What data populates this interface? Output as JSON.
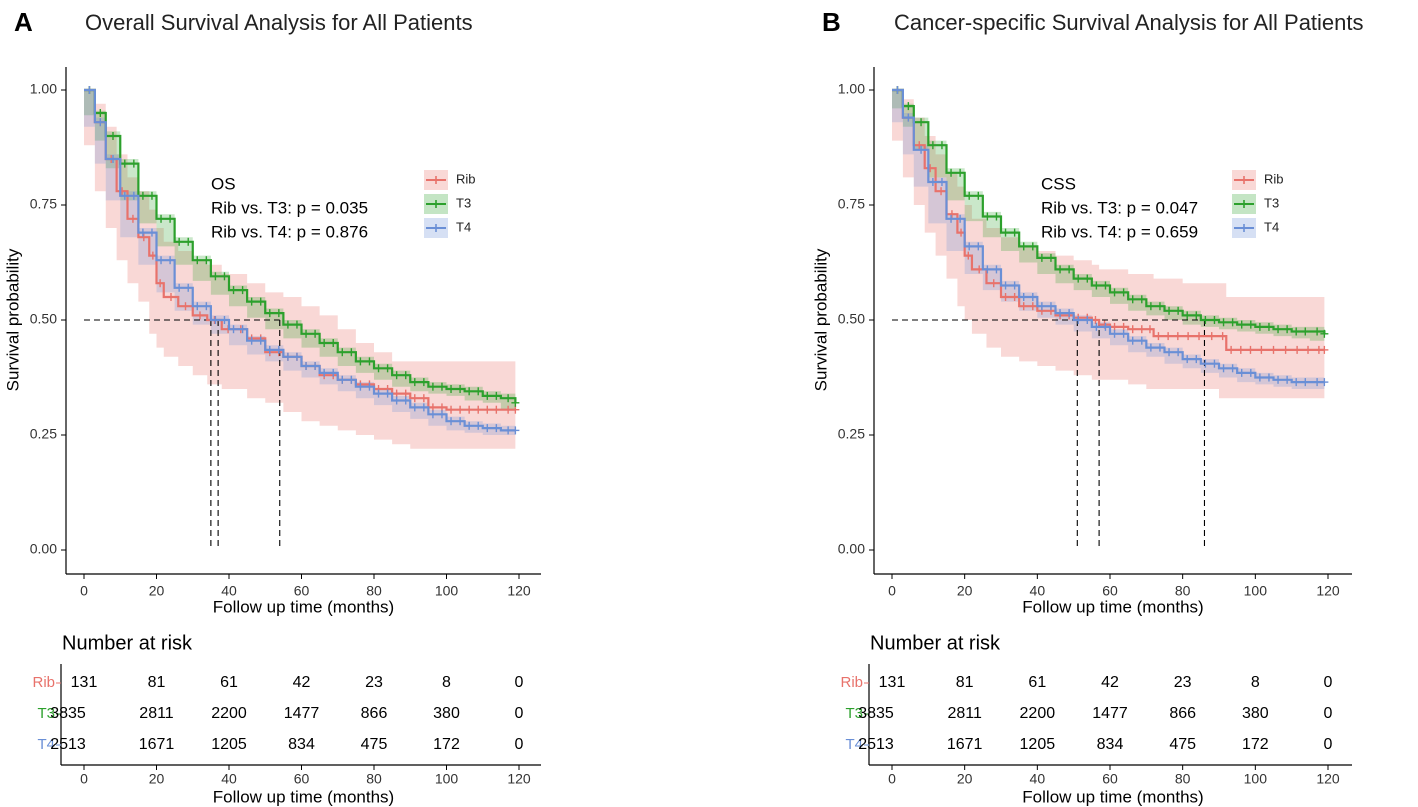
{
  "panels": [
    {
      "letter": "A",
      "title": "Overall Survival Analysis for All Patients",
      "annotation": {
        "line1": "OS",
        "line2": "Rib vs. T3: p = 0.035",
        "line3": "Rib vs. T4: p = 0.876"
      },
      "risk_title": "Number at risk"
    },
    {
      "letter": "B",
      "title": "Cancer-specific Survival Analysis for All Patients",
      "annotation": {
        "line1": "CSS",
        "line2": "Rib vs. T3: p = 0.047",
        "line3": "Rib vs. T4: p = 0.659"
      },
      "risk_title": "Number at risk"
    }
  ],
  "chart_data": [
    {
      "type": "line",
      "subtype": "kaplan-meier",
      "title": "Overall Survival Analysis for All Patients",
      "xlabel": "Follow up time (months)",
      "ylabel": "Survival probability",
      "xlim": [
        0,
        120
      ],
      "ylim": [
        0,
        1
      ],
      "xticks": [
        0,
        20,
        40,
        60,
        80,
        100,
        120
      ],
      "yticks": [
        0.0,
        0.25,
        0.5,
        0.75,
        1.0
      ],
      "ytick_labels": [
        "0.00",
        "0.25",
        "0.50",
        "0.75",
        "1.00"
      ],
      "legend_position": "top-right",
      "median_survival": {
        "Rib": 35,
        "T4": 37,
        "T3": 54
      },
      "series": [
        {
          "name": "Rib",
          "color": "#E8726B",
          "x": [
            0,
            3,
            6,
            9,
            12,
            15,
            18,
            20,
            22,
            26,
            30,
            34,
            38,
            45,
            50,
            55,
            60,
            65,
            70,
            75,
            80,
            85,
            90,
            95,
            100,
            105,
            110,
            115,
            119
          ],
          "y": [
            1.0,
            0.93,
            0.85,
            0.78,
            0.72,
            0.68,
            0.64,
            0.58,
            0.55,
            0.53,
            0.51,
            0.5,
            0.48,
            0.46,
            0.43,
            0.42,
            0.4,
            0.38,
            0.37,
            0.36,
            0.35,
            0.34,
            0.33,
            0.31,
            0.305,
            0.305,
            0.305,
            0.305,
            0.305
          ],
          "ci_upper": [
            1.0,
            0.97,
            0.92,
            0.86,
            0.81,
            0.78,
            0.74,
            0.7,
            0.67,
            0.65,
            0.63,
            0.62,
            0.6,
            0.58,
            0.56,
            0.55,
            0.53,
            0.51,
            0.48,
            0.45,
            0.43,
            0.41,
            0.41,
            0.41,
            0.41,
            0.41,
            0.41,
            0.41,
            0.41
          ],
          "ci_lower": [
            1.0,
            0.88,
            0.78,
            0.7,
            0.63,
            0.58,
            0.54,
            0.47,
            0.44,
            0.42,
            0.4,
            0.38,
            0.36,
            0.35,
            0.33,
            0.32,
            0.3,
            0.28,
            0.27,
            0.26,
            0.25,
            0.24,
            0.23,
            0.22,
            0.22,
            0.22,
            0.22,
            0.22,
            0.22
          ]
        },
        {
          "name": "T3",
          "color": "#2CA02C",
          "x": [
            0,
            3,
            6,
            10,
            15,
            20,
            25,
            30,
            35,
            40,
            45,
            50,
            55,
            60,
            65,
            70,
            75,
            80,
            85,
            90,
            95,
            100,
            105,
            110,
            115,
            119
          ],
          "y": [
            1.0,
            0.95,
            0.9,
            0.84,
            0.77,
            0.72,
            0.67,
            0.63,
            0.595,
            0.565,
            0.54,
            0.515,
            0.49,
            0.47,
            0.45,
            0.43,
            0.41,
            0.395,
            0.38,
            0.365,
            0.355,
            0.35,
            0.345,
            0.335,
            0.33,
            0.32
          ],
          "ci_upper": [
            1.0,
            0.955,
            0.91,
            0.85,
            0.78,
            0.73,
            0.68,
            0.64,
            0.605,
            0.575,
            0.55,
            0.525,
            0.5,
            0.48,
            0.46,
            0.44,
            0.42,
            0.405,
            0.39,
            0.375,
            0.365,
            0.36,
            0.355,
            0.345,
            0.34,
            0.335
          ],
          "ci_lower": [
            1.0,
            0.945,
            0.89,
            0.83,
            0.76,
            0.71,
            0.66,
            0.62,
            0.585,
            0.555,
            0.53,
            0.505,
            0.48,
            0.46,
            0.44,
            0.42,
            0.4,
            0.385,
            0.37,
            0.355,
            0.345,
            0.34,
            0.335,
            0.325,
            0.32,
            0.305
          ]
        },
        {
          "name": "T4",
          "color": "#6A8FD6",
          "x": [
            0,
            3,
            6,
            10,
            15,
            20,
            25,
            30,
            35,
            40,
            45,
            50,
            55,
            60,
            65,
            70,
            75,
            80,
            85,
            90,
            95,
            100,
            105,
            110,
            115,
            119
          ],
          "y": [
            1.0,
            0.93,
            0.85,
            0.77,
            0.69,
            0.63,
            0.57,
            0.53,
            0.5,
            0.48,
            0.455,
            0.435,
            0.42,
            0.4,
            0.385,
            0.37,
            0.355,
            0.34,
            0.325,
            0.31,
            0.295,
            0.28,
            0.27,
            0.265,
            0.26,
            0.26
          ],
          "ci_upper": [
            1.0,
            0.94,
            0.86,
            0.78,
            0.7,
            0.64,
            0.58,
            0.54,
            0.51,
            0.49,
            0.465,
            0.445,
            0.43,
            0.41,
            0.395,
            0.38,
            0.365,
            0.35,
            0.335,
            0.32,
            0.305,
            0.29,
            0.28,
            0.275,
            0.27,
            0.27
          ],
          "ci_lower": [
            1.0,
            0.92,
            0.84,
            0.76,
            0.68,
            0.62,
            0.56,
            0.52,
            0.49,
            0.47,
            0.445,
            0.425,
            0.41,
            0.39,
            0.375,
            0.36,
            0.345,
            0.33,
            0.315,
            0.3,
            0.285,
            0.27,
            0.26,
            0.255,
            0.25,
            0.25
          ]
        }
      ],
      "risk_table": {
        "title": "Number at risk",
        "times": [
          0,
          20,
          40,
          60,
          80,
          100,
          120
        ],
        "rows": [
          {
            "name": "Rib",
            "color": "#E8726B",
            "values": [
              "131",
              "81",
              "61",
              "42",
              "23",
              "8",
              "0"
            ]
          },
          {
            "name": "T3",
            "color": "#2CA02C",
            "values": [
              "3835",
              "2811",
              "2200",
              "1477",
              "866",
              "380",
              "0"
            ]
          },
          {
            "name": "T4",
            "color": "#6A8FD6",
            "values": [
              "2513",
              "1671",
              "1205",
              "834",
              "475",
              "172",
              "0"
            ]
          }
        ],
        "xlabel": "Follow up time (months)"
      }
    },
    {
      "type": "line",
      "subtype": "kaplan-meier",
      "title": "Cancer-specific Survival Analysis for All Patients",
      "xlabel": "Follow up time (months)",
      "ylabel": "Survival probability",
      "xlim": [
        0,
        120
      ],
      "ylim": [
        0,
        1
      ],
      "xticks": [
        0,
        20,
        40,
        60,
        80,
        100,
        120
      ],
      "yticks": [
        0.0,
        0.25,
        0.5,
        0.75,
        1.0
      ],
      "ytick_labels": [
        "0.00",
        "0.25",
        "0.50",
        "0.75",
        "1.00"
      ],
      "legend_position": "top-right",
      "median_survival": {
        "T4": 51,
        "Rib": 57,
        "T3": 86
      },
      "series": [
        {
          "name": "Rib",
          "color": "#E8726B",
          "x": [
            0,
            3,
            6,
            9,
            12,
            15,
            18,
            20,
            22,
            26,
            30,
            35,
            40,
            45,
            50,
            55,
            57,
            60,
            65,
            70,
            72,
            80,
            86,
            90,
            92,
            100,
            110,
            119
          ],
          "y": [
            1.0,
            0.94,
            0.88,
            0.83,
            0.78,
            0.73,
            0.69,
            0.64,
            0.61,
            0.58,
            0.55,
            0.53,
            0.52,
            0.51,
            0.505,
            0.5,
            0.49,
            0.485,
            0.48,
            0.48,
            0.465,
            0.465,
            0.465,
            0.465,
            0.435,
            0.435,
            0.435,
            0.435
          ],
          "ci_upper": [
            1.0,
            0.98,
            0.94,
            0.9,
            0.86,
            0.82,
            0.79,
            0.75,
            0.72,
            0.7,
            0.68,
            0.66,
            0.65,
            0.64,
            0.63,
            0.62,
            0.61,
            0.61,
            0.6,
            0.6,
            0.59,
            0.58,
            0.58,
            0.58,
            0.55,
            0.55,
            0.55,
            0.55
          ],
          "ci_lower": [
            1.0,
            0.89,
            0.81,
            0.75,
            0.69,
            0.64,
            0.59,
            0.53,
            0.5,
            0.47,
            0.44,
            0.42,
            0.41,
            0.4,
            0.39,
            0.38,
            0.37,
            0.37,
            0.37,
            0.36,
            0.35,
            0.35,
            0.35,
            0.35,
            0.33,
            0.33,
            0.33,
            0.33
          ]
        },
        {
          "name": "T3",
          "color": "#2CA02C",
          "x": [
            0,
            3,
            6,
            10,
            15,
            20,
            25,
            30,
            35,
            40,
            45,
            50,
            55,
            60,
            65,
            70,
            75,
            80,
            85,
            90,
            95,
            100,
            105,
            110,
            115,
            119
          ],
          "y": [
            1.0,
            0.965,
            0.93,
            0.88,
            0.82,
            0.77,
            0.725,
            0.69,
            0.66,
            0.635,
            0.61,
            0.59,
            0.575,
            0.56,
            0.545,
            0.53,
            0.52,
            0.51,
            0.5,
            0.495,
            0.49,
            0.485,
            0.48,
            0.475,
            0.475,
            0.47
          ],
          "ci_upper": [
            1.0,
            0.97,
            0.94,
            0.89,
            0.83,
            0.78,
            0.735,
            0.7,
            0.67,
            0.645,
            0.62,
            0.6,
            0.585,
            0.57,
            0.555,
            0.54,
            0.53,
            0.52,
            0.51,
            0.505,
            0.5,
            0.495,
            0.49,
            0.485,
            0.485,
            0.48
          ],
          "ci_lower": [
            1.0,
            0.96,
            0.92,
            0.87,
            0.81,
            0.76,
            0.715,
            0.68,
            0.65,
            0.625,
            0.6,
            0.58,
            0.565,
            0.55,
            0.535,
            0.52,
            0.51,
            0.5,
            0.49,
            0.485,
            0.48,
            0.475,
            0.47,
            0.465,
            0.46,
            0.455
          ]
        },
        {
          "name": "T4",
          "color": "#6A8FD6",
          "x": [
            0,
            3,
            6,
            10,
            15,
            20,
            25,
            30,
            35,
            40,
            45,
            50,
            55,
            60,
            65,
            70,
            75,
            80,
            85,
            90,
            95,
            100,
            105,
            110,
            115,
            119
          ],
          "y": [
            1.0,
            0.94,
            0.87,
            0.8,
            0.72,
            0.66,
            0.61,
            0.575,
            0.55,
            0.53,
            0.515,
            0.5,
            0.485,
            0.47,
            0.455,
            0.44,
            0.43,
            0.415,
            0.405,
            0.395,
            0.385,
            0.375,
            0.37,
            0.365,
            0.365,
            0.365
          ],
          "ci_upper": [
            1.0,
            0.95,
            0.88,
            0.81,
            0.73,
            0.67,
            0.62,
            0.585,
            0.56,
            0.54,
            0.525,
            0.51,
            0.495,
            0.48,
            0.465,
            0.45,
            0.44,
            0.425,
            0.415,
            0.405,
            0.395,
            0.385,
            0.38,
            0.375,
            0.375,
            0.375
          ],
          "ci_lower": [
            1.0,
            0.93,
            0.86,
            0.79,
            0.71,
            0.65,
            0.6,
            0.565,
            0.54,
            0.52,
            0.505,
            0.49,
            0.475,
            0.46,
            0.445,
            0.43,
            0.42,
            0.405,
            0.395,
            0.385,
            0.375,
            0.365,
            0.36,
            0.355,
            0.35,
            0.35
          ]
        }
      ],
      "risk_table": {
        "title": "Number at risk",
        "times": [
          0,
          20,
          40,
          60,
          80,
          100,
          120
        ],
        "rows": [
          {
            "name": "Rib",
            "color": "#E8726B",
            "values": [
              "131",
              "81",
              "61",
              "42",
              "23",
              "8",
              "0"
            ]
          },
          {
            "name": "T3",
            "color": "#2CA02C",
            "values": [
              "3835",
              "2811",
              "2200",
              "1477",
              "866",
              "380",
              "0"
            ]
          },
          {
            "name": "T4",
            "color": "#6A8FD6",
            "values": [
              "2513",
              "1671",
              "1205",
              "834",
              "475",
              "172",
              "0"
            ]
          }
        ],
        "xlabel": "Follow up time (months)"
      }
    }
  ]
}
